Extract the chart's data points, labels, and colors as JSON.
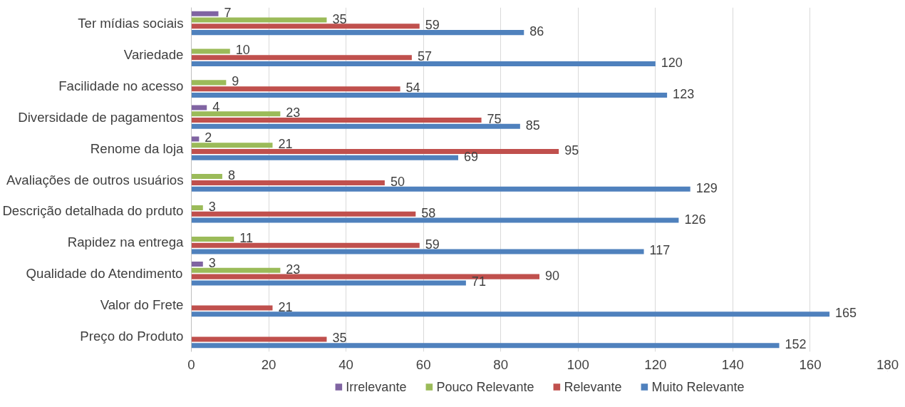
{
  "chart_data": {
    "type": "bar",
    "orientation": "horizontal",
    "categories": [
      "Ter mídias sociais",
      "Variedade",
      "Facilidade no acesso",
      "Diversidade de pagamentos",
      "Renome da loja",
      "Avaliações de outros usuários",
      "Descrição detalhada do prduto",
      "Rapidez na entrega",
      "Qualidade do Atendimento",
      "Valor do Frete",
      "Preço do Produto"
    ],
    "series": [
      {
        "name": "Irrelevante",
        "color": "#8064a2",
        "values": [
          7,
          null,
          null,
          4,
          2,
          null,
          null,
          null,
          3,
          null,
          null
        ]
      },
      {
        "name": "Pouco Relevante",
        "color": "#9bbb59",
        "values": [
          35,
          10,
          9,
          23,
          21,
          8,
          3,
          11,
          23,
          null,
          null
        ]
      },
      {
        "name": "Relevante",
        "color": "#c0504d",
        "values": [
          59,
          57,
          54,
          75,
          95,
          50,
          58,
          59,
          90,
          21,
          35
        ]
      },
      {
        "name": "Muito Relevante",
        "color": "#4f81bd",
        "values": [
          86,
          120,
          123,
          85,
          69,
          129,
          126,
          117,
          71,
          165,
          152
        ]
      }
    ],
    "xlim": [
      0,
      180
    ],
    "xticks": [
      0,
      20,
      40,
      60,
      80,
      100,
      120,
      140,
      160,
      180
    ],
    "grid": "x",
    "legend": "bottom",
    "data_labels": true
  }
}
